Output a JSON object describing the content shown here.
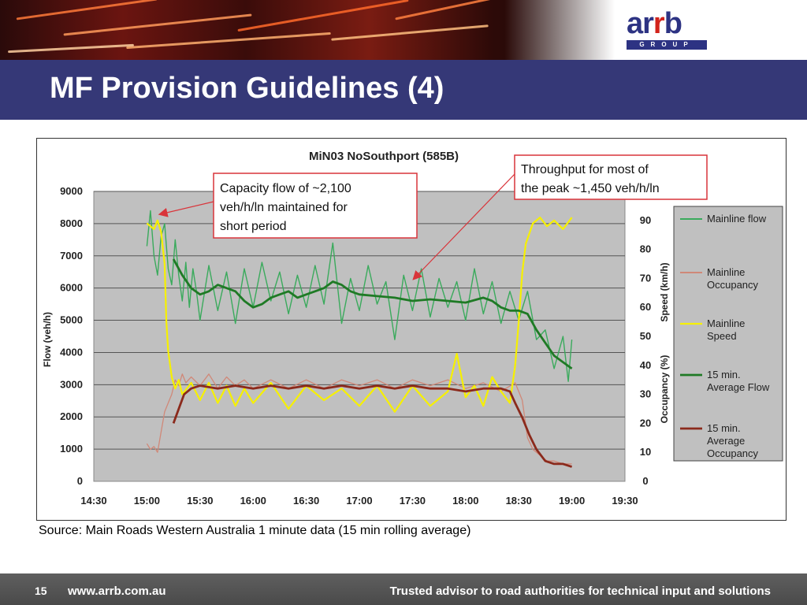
{
  "slide": {
    "title": "MF Provision Guidelines (4)",
    "source_text": "Source: Main Roads Western Australia 1 minute data (15 min rolling average)",
    "page_number": "15",
    "footer_url": "www.arrb.com.au",
    "footer_tagline": "Trusted advisor to road authorities for technical input and solutions",
    "logo_text": "arrb",
    "logo_subtext": "GROUP"
  },
  "colors": {
    "title_bar": "#353877",
    "footer": "#555555",
    "plot_bg": "#c0c0c0",
    "mainline_flow": "#3aaa5c",
    "mainline_occupancy": "#d08878",
    "mainline_speed": "#f6f000",
    "avg_flow": "#1f7a25",
    "avg_occupancy": "#8b2a1c",
    "callout_border": "#d9343a"
  },
  "chart_data": {
    "type": "line",
    "title": "MiN03 NoSouthport (585B)",
    "xlabel": "",
    "ylabel": "Flow (veh/h)",
    "y2label_speed": "Speed (km/h)",
    "y2label_occupancy": "Occupancy (%)",
    "x_ticks": [
      "14:30",
      "15:00",
      "15:30",
      "16:00",
      "16:30",
      "17:00",
      "17:30",
      "18:00",
      "18:30",
      "19:00",
      "19:30"
    ],
    "xlim": [
      "14:30",
      "19:30"
    ],
    "ylim": [
      0,
      9000
    ],
    "y_ticks": [
      "0",
      "1000",
      "2000",
      "3000",
      "4000",
      "5000",
      "6000",
      "7000",
      "8000",
      "9000"
    ],
    "y2lim": [
      0,
      100
    ],
    "y2_ticks": [
      "0",
      "10",
      "20",
      "30",
      "40",
      "50",
      "60",
      "70",
      "80",
      "90"
    ],
    "grid": true,
    "legend_position": "right",
    "series": [
      {
        "name": "Mainline flow",
        "axis": "flow",
        "points": [
          [
            "15:00",
            7300
          ],
          [
            "15:02",
            8400
          ],
          [
            "15:04",
            7000
          ],
          [
            "15:06",
            6400
          ],
          [
            "15:08",
            7600
          ],
          [
            "15:10",
            8000
          ],
          [
            "15:12",
            6600
          ],
          [
            "15:14",
            6100
          ],
          [
            "15:16",
            7500
          ],
          [
            "15:18",
            6400
          ],
          [
            "15:20",
            5600
          ],
          [
            "15:22",
            6800
          ],
          [
            "15:24",
            5400
          ],
          [
            "15:26",
            6600
          ],
          [
            "15:28",
            5900
          ],
          [
            "15:30",
            5000
          ],
          [
            "15:35",
            6700
          ],
          [
            "15:40",
            5300
          ],
          [
            "15:45",
            6500
          ],
          [
            "15:50",
            4900
          ],
          [
            "15:55",
            6600
          ],
          [
            "16:00",
            5400
          ],
          [
            "16:05",
            6800
          ],
          [
            "16:10",
            5600
          ],
          [
            "16:15",
            6500
          ],
          [
            "16:20",
            5200
          ],
          [
            "16:25",
            6400
          ],
          [
            "16:30",
            5400
          ],
          [
            "16:35",
            6700
          ],
          [
            "16:40",
            5500
          ],
          [
            "16:45",
            7400
          ],
          [
            "16:50",
            4900
          ],
          [
            "16:55",
            6300
          ],
          [
            "17:00",
            5300
          ],
          [
            "17:05",
            6700
          ],
          [
            "17:10",
            5500
          ],
          [
            "17:15",
            6200
          ],
          [
            "17:20",
            4400
          ],
          [
            "17:25",
            6400
          ],
          [
            "17:30",
            5300
          ],
          [
            "17:35",
            6600
          ],
          [
            "17:40",
            5100
          ],
          [
            "17:45",
            6300
          ],
          [
            "17:50",
            5400
          ],
          [
            "17:55",
            6200
          ],
          [
            "18:00",
            5000
          ],
          [
            "18:05",
            6600
          ],
          [
            "18:10",
            5200
          ],
          [
            "18:15",
            6200
          ],
          [
            "18:20",
            4900
          ],
          [
            "18:25",
            5900
          ],
          [
            "18:30",
            5000
          ],
          [
            "18:35",
            5900
          ],
          [
            "18:40",
            4400
          ],
          [
            "18:45",
            4700
          ],
          [
            "18:50",
            3500
          ],
          [
            "18:55",
            4500
          ],
          [
            "18:58",
            3100
          ],
          [
            "19:00",
            4400
          ]
        ]
      },
      {
        "name": "Mainline Occupancy",
        "axis": "occupancy",
        "points": [
          [
            "15:00",
            13
          ],
          [
            "15:02",
            11
          ],
          [
            "15:04",
            12
          ],
          [
            "15:06",
            10
          ],
          [
            "15:08",
            17
          ],
          [
            "15:10",
            24
          ],
          [
            "15:12",
            27
          ],
          [
            "15:14",
            30
          ],
          [
            "15:16",
            35
          ],
          [
            "15:18",
            33
          ],
          [
            "15:20",
            37
          ],
          [
            "15:22",
            34
          ],
          [
            "15:25",
            36
          ],
          [
            "15:30",
            33
          ],
          [
            "15:35",
            37
          ],
          [
            "15:40",
            32
          ],
          [
            "15:45",
            36
          ],
          [
            "15:50",
            33
          ],
          [
            "15:55",
            35
          ],
          [
            "16:00",
            32
          ],
          [
            "16:10",
            35
          ],
          [
            "16:20",
            32
          ],
          [
            "16:30",
            35
          ],
          [
            "16:40",
            32
          ],
          [
            "16:50",
            35
          ],
          [
            "17:00",
            33
          ],
          [
            "17:10",
            35
          ],
          [
            "17:20",
            32
          ],
          [
            "17:30",
            35
          ],
          [
            "17:40",
            33
          ],
          [
            "17:50",
            35
          ],
          [
            "18:00",
            32
          ],
          [
            "18:10",
            34
          ],
          [
            "18:20",
            31
          ],
          [
            "18:28",
            34
          ],
          [
            "18:32",
            28
          ],
          [
            "18:35",
            15
          ],
          [
            "18:38",
            11
          ],
          [
            "18:42",
            9
          ],
          [
            "18:46",
            7
          ],
          [
            "18:50",
            7
          ],
          [
            "18:55",
            6
          ],
          [
            "19:00",
            6
          ]
        ]
      },
      {
        "name": "Mainline Speed",
        "axis": "speed",
        "points": [
          [
            "15:00",
            89
          ],
          [
            "15:02",
            88
          ],
          [
            "15:04",
            87
          ],
          [
            "15:06",
            90
          ],
          [
            "15:08",
            86
          ],
          [
            "15:10",
            75
          ],
          [
            "15:11",
            55
          ],
          [
            "15:12",
            45
          ],
          [
            "15:14",
            36
          ],
          [
            "15:16",
            32
          ],
          [
            "15:18",
            35
          ],
          [
            "15:20",
            30
          ],
          [
            "15:25",
            34
          ],
          [
            "15:30",
            28
          ],
          [
            "15:35",
            34
          ],
          [
            "15:40",
            27
          ],
          [
            "15:45",
            33
          ],
          [
            "15:50",
            26
          ],
          [
            "15:55",
            32
          ],
          [
            "16:00",
            27
          ],
          [
            "16:10",
            34
          ],
          [
            "16:20",
            25
          ],
          [
            "16:30",
            33
          ],
          [
            "16:40",
            28
          ],
          [
            "16:50",
            32
          ],
          [
            "17:00",
            26
          ],
          [
            "17:10",
            33
          ],
          [
            "17:20",
            24
          ],
          [
            "17:30",
            33
          ],
          [
            "17:40",
            26
          ],
          [
            "17:50",
            31
          ],
          [
            "17:55",
            44
          ],
          [
            "18:00",
            29
          ],
          [
            "18:05",
            33
          ],
          [
            "18:10",
            26
          ],
          [
            "18:15",
            36
          ],
          [
            "18:20",
            31
          ],
          [
            "18:25",
            27
          ],
          [
            "18:28",
            40
          ],
          [
            "18:30",
            55
          ],
          [
            "18:32",
            72
          ],
          [
            "18:34",
            82
          ],
          [
            "18:38",
            89
          ],
          [
            "18:42",
            91
          ],
          [
            "18:46",
            88
          ],
          [
            "18:50",
            90
          ],
          [
            "18:55",
            87
          ],
          [
            "19:00",
            91
          ]
        ]
      },
      {
        "name": "15 min. Average Flow",
        "axis": "flow",
        "points": [
          [
            "15:15",
            6900
          ],
          [
            "15:20",
            6400
          ],
          [
            "15:25",
            6000
          ],
          [
            "15:30",
            5800
          ],
          [
            "15:35",
            5900
          ],
          [
            "15:40",
            6100
          ],
          [
            "15:45",
            6000
          ],
          [
            "15:50",
            5900
          ],
          [
            "15:55",
            5600
          ],
          [
            "16:00",
            5400
          ],
          [
            "16:05",
            5500
          ],
          [
            "16:10",
            5700
          ],
          [
            "16:15",
            5800
          ],
          [
            "16:20",
            5900
          ],
          [
            "16:25",
            5700
          ],
          [
            "16:30",
            5800
          ],
          [
            "16:35",
            5900
          ],
          [
            "16:40",
            6000
          ],
          [
            "16:45",
            6200
          ],
          [
            "16:50",
            6100
          ],
          [
            "16:55",
            5900
          ],
          [
            "17:00",
            5800
          ],
          [
            "17:10",
            5750
          ],
          [
            "17:20",
            5700
          ],
          [
            "17:30",
            5600
          ],
          [
            "17:40",
            5650
          ],
          [
            "17:50",
            5600
          ],
          [
            "18:00",
            5550
          ],
          [
            "18:10",
            5700
          ],
          [
            "18:15",
            5600
          ],
          [
            "18:20",
            5400
          ],
          [
            "18:25",
            5300
          ],
          [
            "18:30",
            5300
          ],
          [
            "18:35",
            5200
          ],
          [
            "18:40",
            4700
          ],
          [
            "18:45",
            4300
          ],
          [
            "18:50",
            3900
          ],
          [
            "18:55",
            3700
          ],
          [
            "19:00",
            3500
          ]
        ]
      },
      {
        "name": "15 min. Average Occupancy",
        "axis": "occupancy",
        "points": [
          [
            "15:15",
            20
          ],
          [
            "15:18",
            25
          ],
          [
            "15:21",
            30
          ],
          [
            "15:25",
            32
          ],
          [
            "15:30",
            33
          ],
          [
            "15:40",
            32
          ],
          [
            "15:50",
            33
          ],
          [
            "16:00",
            32
          ],
          [
            "16:10",
            33
          ],
          [
            "16:20",
            32
          ],
          [
            "16:30",
            33
          ],
          [
            "16:40",
            32
          ],
          [
            "16:50",
            33
          ],
          [
            "17:00",
            32
          ],
          [
            "17:10",
            33
          ],
          [
            "17:20",
            32
          ],
          [
            "17:30",
            33
          ],
          [
            "17:40",
            32
          ],
          [
            "17:50",
            32
          ],
          [
            "18:00",
            31
          ],
          [
            "18:10",
            32
          ],
          [
            "18:20",
            32
          ],
          [
            "18:25",
            31
          ],
          [
            "18:28",
            27
          ],
          [
            "18:32",
            22
          ],
          [
            "18:36",
            16
          ],
          [
            "18:40",
            11
          ],
          [
            "18:45",
            7
          ],
          [
            "18:50",
            6
          ],
          [
            "18:55",
            6
          ],
          [
            "19:00",
            5
          ]
        ]
      }
    ],
    "annotations": [
      {
        "text": "Capacity flow of ~2,100 veh/h/ln maintained for short period"
      },
      {
        "text": "Throughput for most of the peak ~1,450 veh/h/ln"
      }
    ],
    "legend": [
      {
        "label": "Mainline flow"
      },
      {
        "label": "Mainline Occupancy"
      },
      {
        "label": "Mainline Speed"
      },
      {
        "label": "15 min. Average Flow"
      },
      {
        "label": "15 min. Average Occupancy"
      }
    ]
  }
}
